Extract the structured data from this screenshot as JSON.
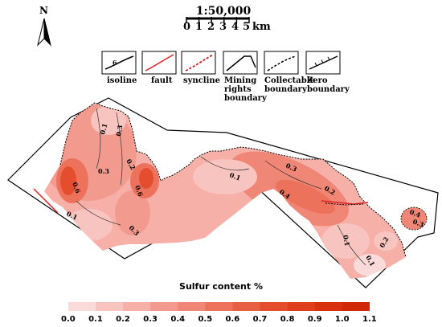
{
  "north": {
    "label": "N"
  },
  "scale": {
    "title": "1:50,000",
    "ticks": [
      "0",
      "1",
      "2",
      "3",
      "4",
      "5"
    ],
    "unit": "km"
  },
  "legend": {
    "items": [
      {
        "key": "isoline",
        "label": "isoline",
        "sample_value": "6"
      },
      {
        "key": "fault",
        "label": "fault"
      },
      {
        "key": "syncline",
        "label": "syncline"
      },
      {
        "key": "mining",
        "label": "Mining rights boundary"
      },
      {
        "key": "collectable",
        "label": "Collectable boundary"
      },
      {
        "key": "zero",
        "label": "Zero boundary"
      }
    ],
    "colors": {
      "fault": "#e02020",
      "syncline": "#d01818",
      "line": "#000000"
    }
  },
  "map": {
    "contour_labels": [
      "0.1",
      "0.3",
      "0.2",
      "0.3",
      "0.6",
      "0.6",
      "0.1",
      "0.3",
      "0.1",
      "0.3",
      "0.4",
      "0.2",
      "0.1",
      "0.2",
      "0.1",
      "0.4",
      "0.3"
    ]
  },
  "colorbar": {
    "title": "Sulfur content %",
    "ticks": [
      "0.0",
      "0.1",
      "0.2",
      "0.3",
      "0.4",
      "0.5",
      "0.6",
      "0.7",
      "0.8",
      "0.9",
      "1.0",
      "1.1"
    ],
    "colors": [
      "#fbdada",
      "#f8c4c0",
      "#f6b0a8",
      "#f39a8e",
      "#f08676",
      "#ec725c",
      "#e86044",
      "#e44e2e",
      "#df3e1c",
      "#d9310e",
      "#cf2806"
    ]
  }
}
